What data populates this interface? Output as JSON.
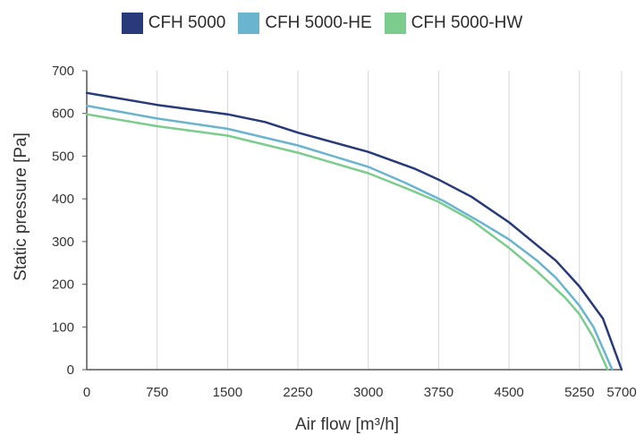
{
  "chart_data": {
    "type": "line",
    "title": "",
    "xlabel": "Air flow [m³/h]",
    "ylabel": "Static pressure [Pa]",
    "xlim": [
      0,
      5700
    ],
    "ylim": [
      0,
      700
    ],
    "x_ticks": [
      "0",
      "750",
      "1500",
      "2250",
      "3000",
      "3750",
      "4500",
      "5250",
      "5700"
    ],
    "y_ticks": [
      "0",
      "100",
      "200",
      "300",
      "400",
      "500",
      "600",
      "700"
    ],
    "grid": "vertical",
    "legend_position": "top-center",
    "series": [
      {
        "name": "CFH 5000",
        "color": "#283a7a",
        "points": [
          [
            0,
            648
          ],
          [
            750,
            620
          ],
          [
            1500,
            598
          ],
          [
            1900,
            580
          ],
          [
            2250,
            555
          ],
          [
            3000,
            510
          ],
          [
            3500,
            470
          ],
          [
            3750,
            445
          ],
          [
            4100,
            405
          ],
          [
            4500,
            345
          ],
          [
            5000,
            255
          ],
          [
            5250,
            195
          ],
          [
            5500,
            120
          ],
          [
            5700,
            0
          ]
        ]
      },
      {
        "name": "CFH 5000-HE",
        "color": "#6ab4cf",
        "points": [
          [
            0,
            618
          ],
          [
            750,
            588
          ],
          [
            1500,
            564
          ],
          [
            2250,
            525
          ],
          [
            3000,
            475
          ],
          [
            3400,
            437
          ],
          [
            3800,
            395
          ],
          [
            4200,
            345
          ],
          [
            4500,
            305
          ],
          [
            4800,
            255
          ],
          [
            5000,
            215
          ],
          [
            5250,
            150
          ],
          [
            5400,
            100
          ],
          [
            5600,
            0
          ]
        ]
      },
      {
        "name": "CFH 5000-HW",
        "color": "#7ccc8e",
        "points": [
          [
            0,
            598
          ],
          [
            750,
            570
          ],
          [
            1500,
            548
          ],
          [
            2250,
            508
          ],
          [
            3000,
            460
          ],
          [
            3400,
            425
          ],
          [
            3750,
            393
          ],
          [
            4100,
            350
          ],
          [
            4500,
            285
          ],
          [
            4800,
            230
          ],
          [
            5100,
            168
          ],
          [
            5250,
            130
          ],
          [
            5400,
            75
          ],
          [
            5450,
            50
          ],
          [
            5500,
            25
          ],
          [
            5550,
            0
          ]
        ]
      }
    ]
  }
}
